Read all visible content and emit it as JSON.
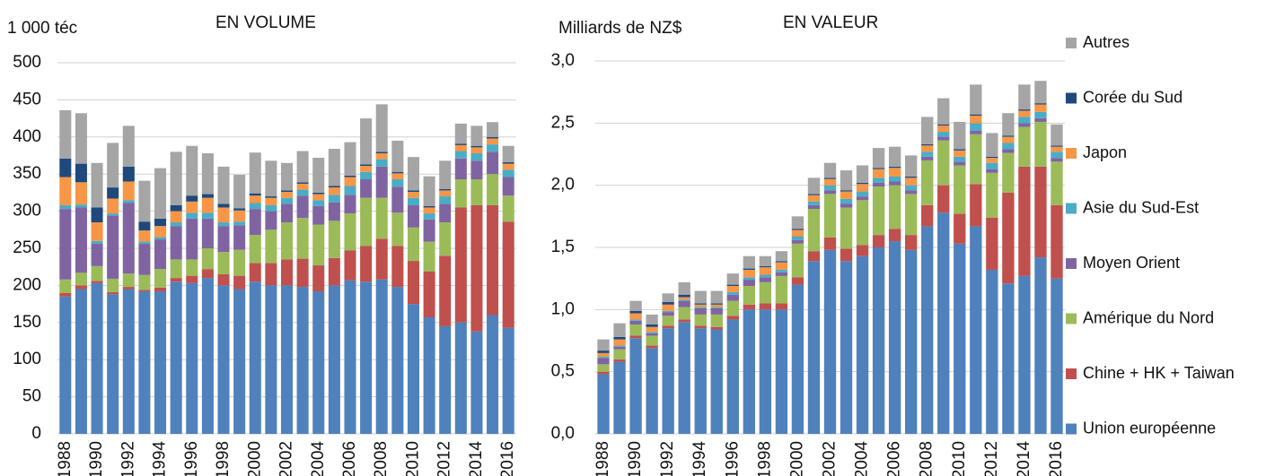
{
  "chart_data": [
    {
      "type": "bar",
      "stacked": true,
      "title": "EN VOLUME",
      "ylabel": "1 000 téc",
      "categories": [
        "1988",
        null,
        "1990",
        null,
        "1992",
        null,
        "1994",
        null,
        "1996",
        null,
        "1998",
        null,
        "2000",
        null,
        "2002",
        null,
        "2004",
        null,
        "2006",
        null,
        "2008",
        null,
        "2010",
        null,
        "2012",
        null,
        "2014",
        null,
        "2016"
      ],
      "ylim": [
        0,
        500
      ],
      "yticks": [
        0,
        50,
        100,
        150,
        200,
        250,
        300,
        350,
        400,
        450,
        500
      ],
      "grid": true,
      "series": [
        {
          "color": "#4f81bd",
          "values": [
            185,
            195,
            203,
            188,
            195,
            192,
            192,
            205,
            203,
            210,
            200,
            195,
            205,
            200,
            200,
            198,
            192,
            200,
            207,
            205,
            208,
            198,
            175,
            157,
            145,
            150,
            138,
            160,
            143
          ]
        },
        {
          "color": "#c0504d",
          "values": [
            5,
            5,
            3,
            3,
            3,
            2,
            5,
            5,
            10,
            12,
            15,
            18,
            25,
            30,
            35,
            38,
            35,
            37,
            40,
            48,
            55,
            55,
            58,
            62,
            95,
            155,
            170,
            148,
            143
          ]
        },
        {
          "color": "#9bbb59",
          "values": [
            18,
            17,
            20,
            18,
            18,
            20,
            25,
            25,
            22,
            28,
            30,
            35,
            38,
            45,
            50,
            55,
            55,
            50,
            50,
            65,
            55,
            45,
            45,
            40,
            45,
            38,
            35,
            42,
            35
          ]
        },
        {
          "color": "#8064a2",
          "values": [
            95,
            88,
            30,
            85,
            95,
            42,
            40,
            45,
            55,
            40,
            35,
            33,
            35,
            25,
            25,
            30,
            25,
            25,
            25,
            25,
            42,
            35,
            30,
            30,
            25,
            28,
            25,
            30,
            25
          ]
        },
        {
          "color": "#4bacc6",
          "values": [
            5,
            4,
            4,
            3,
            4,
            3,
            3,
            5,
            8,
            8,
            5,
            5,
            8,
            8,
            8,
            8,
            8,
            10,
            12,
            10,
            10,
            10,
            10,
            8,
            10,
            10,
            10,
            10,
            10
          ]
        },
        {
          "color": "#f79646",
          "values": [
            38,
            30,
            25,
            20,
            25,
            15,
            15,
            15,
            15,
            20,
            20,
            15,
            10,
            10,
            8,
            8,
            8,
            10,
            12,
            8,
            8,
            8,
            8,
            8,
            8,
            8,
            8,
            8,
            8
          ]
        },
        {
          "color": "#1f497d",
          "values": [
            25,
            25,
            20,
            15,
            20,
            12,
            10,
            8,
            8,
            5,
            5,
            3,
            3,
            2,
            2,
            2,
            2,
            2,
            2,
            2,
            2,
            2,
            2,
            2,
            2,
            2,
            2,
            2,
            2
          ]
        },
        {
          "color": "#a5a5a5",
          "values": [
            65,
            68,
            60,
            60,
            55,
            55,
            68,
            72,
            67,
            55,
            50,
            45,
            55,
            48,
            37,
            42,
            47,
            50,
            45,
            62,
            64,
            42,
            45,
            40,
            38,
            27,
            27,
            20,
            22
          ]
        }
      ]
    },
    {
      "type": "bar",
      "stacked": true,
      "title": "EN VALEUR",
      "ylabel": "Milliards de NZ$",
      "categories": [
        "1988",
        null,
        "1990",
        null,
        "1992",
        null,
        "1994",
        null,
        "1996",
        null,
        "1998",
        null,
        "2000",
        null,
        "2002",
        null,
        "2004",
        null,
        "2006",
        null,
        "2008",
        null,
        "2010",
        null,
        "2012",
        null,
        "2014",
        null,
        "2016"
      ],
      "ylim": [
        0,
        3
      ],
      "yticks": [
        {
          "value": 0,
          "label": "0,0"
        },
        {
          "value": 0.5,
          "label": "0,5"
        },
        {
          "value": 1,
          "label": "1,0"
        },
        {
          "value": 1.5,
          "label": "1,5"
        },
        {
          "value": 2,
          "label": "2,0"
        },
        {
          "value": 2.5,
          "label": "2,5"
        },
        {
          "value": 3,
          "label": "3,0"
        }
      ],
      "grid": true,
      "series": [
        {
          "name": "Union européenne",
          "color": "#4f81bd",
          "values": [
            0.48,
            0.58,
            0.77,
            0.69,
            0.85,
            0.9,
            0.85,
            0.84,
            0.92,
            1.0,
            1.0,
            1.0,
            1.2,
            1.39,
            1.48,
            1.39,
            1.43,
            1.5,
            1.55,
            1.48,
            1.67,
            1.78,
            1.53,
            1.67,
            1.32,
            1.21,
            1.27,
            1.42,
            1.25
          ]
        },
        {
          "name": "Chine + HK + Taiwan",
          "color": "#c0504d",
          "values": [
            0.02,
            0.02,
            0.02,
            0.02,
            0.02,
            0.02,
            0.02,
            0.02,
            0.03,
            0.04,
            0.05,
            0.05,
            0.06,
            0.08,
            0.1,
            0.1,
            0.09,
            0.1,
            0.1,
            0.12,
            0.17,
            0.22,
            0.24,
            0.34,
            0.42,
            0.73,
            0.88,
            0.73,
            0.59
          ]
        },
        {
          "name": "Amérique du Nord",
          "color": "#9bbb59",
          "values": [
            0.06,
            0.08,
            0.09,
            0.08,
            0.08,
            0.1,
            0.09,
            0.1,
            0.12,
            0.15,
            0.17,
            0.22,
            0.27,
            0.34,
            0.35,
            0.33,
            0.36,
            0.39,
            0.35,
            0.33,
            0.36,
            0.36,
            0.39,
            0.4,
            0.36,
            0.32,
            0.32,
            0.36,
            0.35
          ]
        },
        {
          "name": "Moyen Orient",
          "color": "#8064a2",
          "values": [
            0.05,
            0.02,
            0.03,
            0.02,
            0.03,
            0.05,
            0.05,
            0.05,
            0.05,
            0.05,
            0.04,
            0.03,
            0.03,
            0.03,
            0.03,
            0.03,
            0.03,
            0.03,
            0.03,
            0.03,
            0.03,
            0.03,
            0.03,
            0.03,
            0.03,
            0.03,
            0.03,
            0.03,
            0.03
          ]
        },
        {
          "name": "Asie du Sud-Est",
          "color": "#4bacc6",
          "values": [
            0.01,
            0.01,
            0.01,
            0.01,
            0.01,
            0.01,
            0.01,
            0.01,
            0.02,
            0.02,
            0.02,
            0.02,
            0.03,
            0.03,
            0.04,
            0.04,
            0.04,
            0.04,
            0.04,
            0.04,
            0.04,
            0.04,
            0.04,
            0.06,
            0.05,
            0.05,
            0.05,
            0.05,
            0.05
          ]
        },
        {
          "name": "Japon",
          "color": "#f79646",
          "values": [
            0.03,
            0.05,
            0.05,
            0.04,
            0.05,
            0.02,
            0.02,
            0.02,
            0.05,
            0.06,
            0.06,
            0.06,
            0.05,
            0.05,
            0.05,
            0.06,
            0.06,
            0.07,
            0.07,
            0.06,
            0.05,
            0.05,
            0.05,
            0.06,
            0.04,
            0.05,
            0.05,
            0.06,
            0.04
          ]
        },
        {
          "name": "Corée du Sud",
          "color": "#1f497d",
          "values": [
            0.02,
            0.02,
            0.02,
            0.02,
            0.02,
            0.02,
            0.01,
            0.01,
            0.01,
            0.01,
            0.01,
            0.01,
            0.01,
            0.01,
            0.01,
            0.01,
            0.01,
            0.01,
            0.01,
            0.01,
            0.01,
            0.01,
            0.01,
            0.01,
            0.01,
            0.01,
            0.01,
            0.01,
            0.01
          ]
        },
        {
          "name": "Autres",
          "color": "#a5a5a5",
          "values": [
            0.09,
            0.11,
            0.08,
            0.08,
            0.07,
            0.1,
            0.1,
            0.1,
            0.09,
            0.1,
            0.08,
            0.08,
            0.1,
            0.13,
            0.12,
            0.16,
            0.14,
            0.16,
            0.16,
            0.17,
            0.22,
            0.21,
            0.22,
            0.24,
            0.19,
            0.18,
            0.2,
            0.18,
            0.17
          ]
        }
      ]
    }
  ]
}
